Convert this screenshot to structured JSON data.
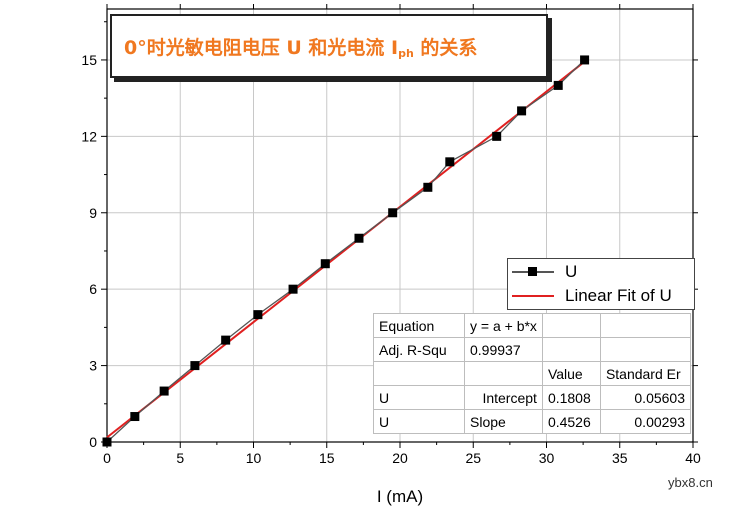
{
  "chart_data": {
    "type": "scatter",
    "title_main": "0°时光敏电阻电压 U 和光电流 I",
    "title_sub": "ph",
    "title_tail": " 的关系",
    "xlabel": "I (mA)",
    "ylabel": "",
    "xlim": [
      0,
      40
    ],
    "ylim": [
      0,
      17
    ],
    "xticks": [
      0,
      5,
      10,
      15,
      20,
      25,
      30,
      35,
      40
    ],
    "yticks": [
      0,
      3,
      6,
      9,
      12,
      15
    ],
    "grid": true,
    "series": [
      {
        "name": "U",
        "color": "#000000",
        "line_color": "#555555",
        "marker": "square",
        "x": [
          0.0,
          1.9,
          3.9,
          6.0,
          8.1,
          10.3,
          12.7,
          14.9,
          17.2,
          19.5,
          21.9,
          23.4,
          26.6,
          28.3,
          30.8,
          32.6
        ],
        "y": [
          0,
          1,
          2,
          3,
          4,
          5,
          6,
          7,
          8,
          9,
          10,
          11,
          12,
          13,
          14,
          15
        ]
      },
      {
        "name": "Linear Fit of U",
        "color": "#e02020",
        "type": "line",
        "x": [
          0.0,
          32.6
        ],
        "y": [
          0.1808,
          14.936
        ]
      }
    ],
    "legend_position": "center-right",
    "fit_table": {
      "rows": [
        [
          "Equation",
          "y = a + b*x",
          "",
          ""
        ],
        [
          "Adj. R-Squ",
          "0.99937",
          "",
          ""
        ],
        [
          "",
          "",
          "Value",
          "Standard Er"
        ],
        [
          "U",
          "Intercept",
          "0.1808",
          "0.05603"
        ],
        [
          "U",
          "Slope",
          "0.4526",
          "0.00293"
        ]
      ]
    }
  },
  "watermark": "ybx8.cn"
}
